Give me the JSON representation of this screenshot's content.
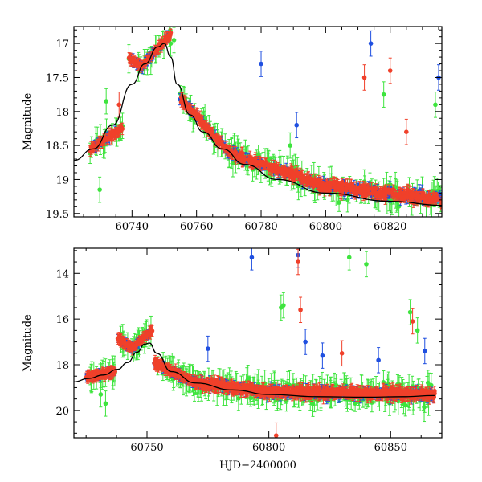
{
  "colors": {
    "blue": "#1f4fe0",
    "green": "#3ee43e",
    "red": "#f0402a",
    "model": "#000000"
  },
  "chart_data": [
    {
      "type": "scatter",
      "title": "",
      "xlabel": "",
      "ylabel": "Magnitude",
      "xlim": [
        60722,
        60836
      ],
      "ylim": [
        19.55,
        16.75
      ],
      "y_inverted": true,
      "grid": false,
      "xticks": [
        60740,
        60760,
        60780,
        60800,
        60820
      ],
      "yticks": [
        17,
        17.5,
        18,
        18.5,
        19,
        19.5
      ],
      "series_colors": [
        "blue",
        "green",
        "red"
      ],
      "model_curve": {
        "x": [
          60722,
          60728,
          60734,
          60740,
          60744,
          60748,
          60750,
          60752,
          60754,
          60758,
          60762,
          60768,
          60775,
          60785,
          60800,
          60820,
          60836
        ],
        "y": [
          18.72,
          18.55,
          18.2,
          17.6,
          17.3,
          17.05,
          17.0,
          17.2,
          17.6,
          18.05,
          18.3,
          18.55,
          18.78,
          19.0,
          19.2,
          19.32,
          19.38
        ]
      },
      "segments": [
        {
          "x0": 60727,
          "x1": 60737,
          "y0": 18.55,
          "y1": 18.25,
          "scatter": 0.06
        },
        {
          "x0": 60739,
          "x1": 60743,
          "y0": 17.2,
          "y1": 17.35,
          "scatter": 0.04
        },
        {
          "x0": 60743,
          "x1": 60752,
          "y0": 17.35,
          "y1": 16.85,
          "scatter": 0.05
        },
        {
          "x0": 60755,
          "x1": 60770,
          "y0": 17.8,
          "y1": 18.6,
          "scatter": 0.07
        },
        {
          "x0": 60770,
          "x1": 60800,
          "y0": 18.6,
          "y1": 19.1,
          "scatter": 0.1
        },
        {
          "x0": 60800,
          "x1": 60836,
          "y0": 19.1,
          "y1": 19.3,
          "scatter": 0.12
        }
      ],
      "outliers": [
        {
          "x": 60730,
          "y": 19.15,
          "c": "green"
        },
        {
          "x": 60732,
          "y": 17.85,
          "c": "green"
        },
        {
          "x": 60736,
          "y": 17.9,
          "c": "red"
        },
        {
          "x": 60752,
          "y": 17.0,
          "c": "green"
        },
        {
          "x": 60753,
          "y": 16.95,
          "c": "green"
        },
        {
          "x": 60780,
          "y": 17.3,
          "c": "blue"
        },
        {
          "x": 60789,
          "y": 18.5,
          "c": "green"
        },
        {
          "x": 60791,
          "y": 18.2,
          "c": "blue"
        },
        {
          "x": 60812,
          "y": 17.5,
          "c": "red"
        },
        {
          "x": 60814,
          "y": 17.0,
          "c": "blue"
        },
        {
          "x": 60818,
          "y": 17.75,
          "c": "green"
        },
        {
          "x": 60820,
          "y": 17.4,
          "c": "red"
        },
        {
          "x": 60825,
          "y": 18.3,
          "c": "red"
        },
        {
          "x": 60834,
          "y": 17.9,
          "c": "green"
        },
        {
          "x": 60835,
          "y": 17.5,
          "c": "blue"
        }
      ]
    },
    {
      "type": "scatter",
      "title": "",
      "xlabel": "HJD−2400000",
      "ylabel": "Magnitude",
      "xlim": [
        60720,
        60871
      ],
      "ylim": [
        21.2,
        12.9
      ],
      "y_inverted": true,
      "grid": false,
      "xticks": [
        60750,
        60800,
        60850
      ],
      "yticks": [
        14,
        16,
        18,
        20
      ],
      "series_colors": [
        "blue",
        "green",
        "red"
      ],
      "model_curve": {
        "x": [
          60720,
          60726,
          60732,
          60738,
          60742,
          60746,
          60749,
          60751,
          60754,
          60760,
          60770,
          60785,
          60800,
          60820,
          60840,
          60855,
          60868
        ],
        "y": [
          18.75,
          18.6,
          18.45,
          18.2,
          17.9,
          17.45,
          17.1,
          17.05,
          17.5,
          18.3,
          18.8,
          19.1,
          19.3,
          19.4,
          19.42,
          19.4,
          19.35
        ]
      },
      "segments": [
        {
          "x0": 60725,
          "x1": 60737,
          "y0": 18.55,
          "y1": 18.3,
          "scatter": 0.12
        },
        {
          "x0": 60738,
          "x1": 60744,
          "y0": 16.85,
          "y1": 17.3,
          "scatter": 0.1
        },
        {
          "x0": 60744,
          "x1": 60752,
          "y0": 17.3,
          "y1": 16.5,
          "scatter": 0.1
        },
        {
          "x0": 60753,
          "x1": 60770,
          "y0": 17.9,
          "y1": 18.8,
          "scatter": 0.15
        },
        {
          "x0": 60770,
          "x1": 60800,
          "y0": 18.8,
          "y1": 19.2,
          "scatter": 0.25
        },
        {
          "x0": 60800,
          "x1": 60868,
          "y0": 19.2,
          "y1": 19.3,
          "scatter": 0.3
        }
      ],
      "outliers": [
        {
          "x": 60731,
          "y": 19.3,
          "c": "green"
        },
        {
          "x": 60733,
          "y": 19.7,
          "c": "green"
        },
        {
          "x": 60775,
          "y": 17.3,
          "c": "blue"
        },
        {
          "x": 60793,
          "y": 13.3,
          "c": "blue"
        },
        {
          "x": 60805,
          "y": 15.5,
          "c": "green"
        },
        {
          "x": 60806,
          "y": 15.4,
          "c": "green"
        },
        {
          "x": 60812,
          "y": 13.2,
          "c": "blue"
        },
        {
          "x": 60812,
          "y": 13.5,
          "c": "red"
        },
        {
          "x": 60813,
          "y": 15.6,
          "c": "red"
        },
        {
          "x": 60815,
          "y": 17.0,
          "c": "blue"
        },
        {
          "x": 60822,
          "y": 17.6,
          "c": "blue"
        },
        {
          "x": 60830,
          "y": 17.5,
          "c": "red"
        },
        {
          "x": 60833,
          "y": 13.3,
          "c": "green"
        },
        {
          "x": 60840,
          "y": 13.6,
          "c": "green"
        },
        {
          "x": 60845,
          "y": 17.8,
          "c": "blue"
        },
        {
          "x": 60858,
          "y": 15.7,
          "c": "green"
        },
        {
          "x": 60859,
          "y": 16.1,
          "c": "red"
        },
        {
          "x": 60861,
          "y": 16.5,
          "c": "green"
        },
        {
          "x": 60864,
          "y": 17.4,
          "c": "blue"
        },
        {
          "x": 60803,
          "y": 21.1,
          "c": "red"
        }
      ]
    }
  ]
}
